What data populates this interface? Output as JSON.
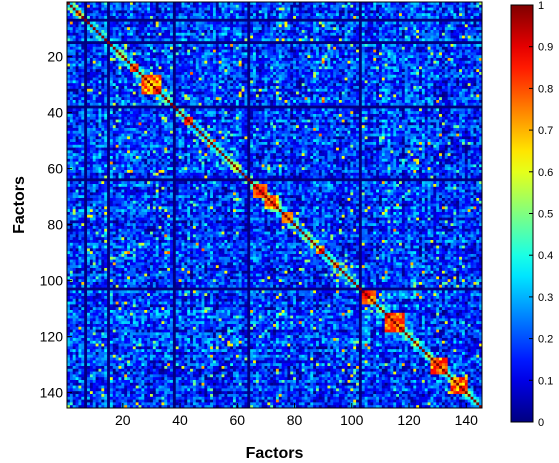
{
  "chart_data": {
    "type": "heatmap",
    "title": "",
    "xlabel": "Factors",
    "ylabel": "Factors",
    "n": 145,
    "xticks": [
      20,
      40,
      60,
      80,
      100,
      120,
      140
    ],
    "yticks": [
      20,
      40,
      60,
      80,
      100,
      120,
      140
    ],
    "clim": [
      0,
      1
    ],
    "colorbar_ticks": [
      0,
      0.1,
      0.2,
      0.3,
      0.4,
      0.5,
      0.6,
      0.7,
      0.8,
      0.9,
      1
    ],
    "colormap": "jet",
    "block_boundaries": [
      6,
      14,
      37,
      63,
      102
    ],
    "high_correlation_pairs": [
      [
        23,
        25
      ],
      [
        27,
        33
      ],
      [
        42,
        44
      ],
      [
        66,
        70
      ],
      [
        70,
        74
      ],
      [
        76,
        79
      ],
      [
        88,
        90
      ],
      [
        103,
        108
      ],
      [
        112,
        118
      ],
      [
        128,
        133
      ],
      [
        135,
        140
      ]
    ],
    "notes_values": "symmetric correlation matrix, diagonal = 1, off-diagonal mostly 0.1-0.4"
  }
}
